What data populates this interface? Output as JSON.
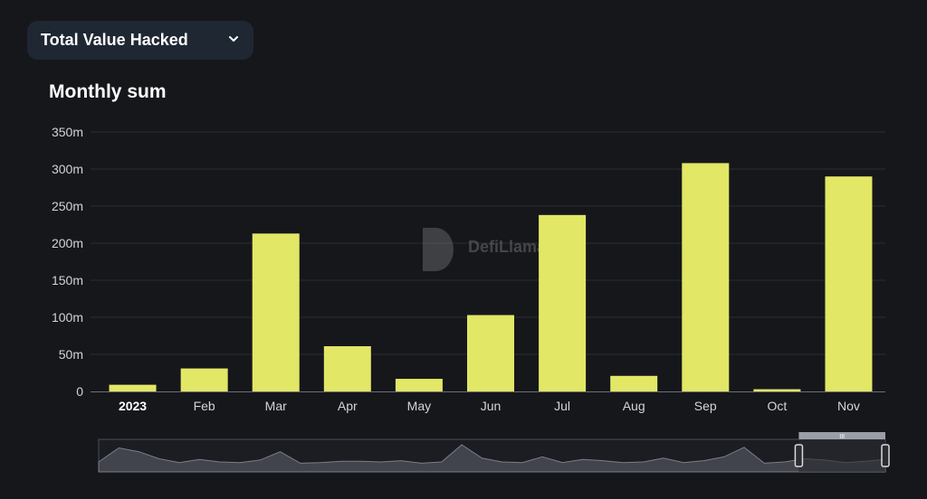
{
  "header": {
    "metric_label": "Total Value Hacked",
    "dropdown_icon": "chevron-down-icon"
  },
  "watermark": {
    "text": "DefiLlama"
  },
  "colors": {
    "background": "#16171b",
    "bar": "#e2e766",
    "grid": "#2b2d33",
    "dropdown_bg": "#1f2733"
  },
  "chart_data": {
    "type": "bar",
    "title": "Monthly sum",
    "xlabel": "",
    "ylabel": "",
    "categories": [
      "2023",
      "Feb",
      "Mar",
      "Apr",
      "May",
      "Jun",
      "Jul",
      "Aug",
      "Sep",
      "Oct",
      "Nov"
    ],
    "values": [
      9,
      31,
      213,
      61,
      17,
      103,
      238,
      21,
      308,
      3,
      290
    ],
    "unit": "m",
    "ylim": [
      0,
      350
    ],
    "yticks": [
      "0",
      "50m",
      "100m",
      "150m",
      "200m",
      "250m",
      "300m",
      "350m"
    ],
    "grid": true,
    "legend": "none"
  },
  "zoom_slider": {
    "overview_values": [
      10,
      32,
      26,
      15,
      9,
      14,
      10,
      9,
      13,
      26,
      8,
      9,
      11,
      11,
      10,
      12,
      8,
      10,
      37,
      16,
      10,
      9,
      18,
      9,
      14,
      12,
      9,
      10,
      16,
      9,
      12,
      18,
      33,
      8,
      10,
      15,
      13,
      9,
      11,
      14
    ],
    "selected_range": [
      0.89,
      1.0
    ],
    "handle_label": "III"
  }
}
